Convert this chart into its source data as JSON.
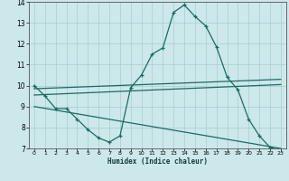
{
  "xlabel": "Humidex (Indice chaleur)",
  "bg_color": "#cce8eb",
  "grid_color": "#aacccc",
  "line_color": "#1a6b62",
  "xlim": [
    -0.5,
    23.5
  ],
  "ylim": [
    7,
    14
  ],
  "xticks": [
    0,
    1,
    2,
    3,
    4,
    5,
    6,
    7,
    8,
    9,
    10,
    11,
    12,
    13,
    14,
    15,
    16,
    17,
    18,
    19,
    20,
    21,
    22,
    23
  ],
  "yticks": [
    7,
    8,
    9,
    10,
    11,
    12,
    13,
    14
  ],
  "curve1_x": [
    0,
    1,
    2,
    3,
    4,
    5,
    6,
    7,
    8,
    9,
    10,
    11,
    12,
    13,
    14,
    15,
    16,
    17,
    18,
    19,
    20,
    21,
    22,
    23
  ],
  "curve1_y": [
    10.0,
    9.5,
    8.9,
    8.9,
    8.4,
    7.9,
    7.5,
    7.3,
    7.6,
    9.9,
    10.5,
    11.5,
    11.8,
    13.5,
    13.85,
    13.3,
    12.85,
    11.85,
    10.4,
    9.8,
    8.4,
    7.6,
    7.05,
    6.9
  ],
  "line1_x": [
    0,
    23
  ],
  "line1_y": [
    9.85,
    10.3
  ],
  "line2_x": [
    0,
    23
  ],
  "line2_y": [
    9.55,
    10.05
  ],
  "line3_x": [
    0,
    23
  ],
  "line3_y": [
    9.0,
    7.0
  ]
}
